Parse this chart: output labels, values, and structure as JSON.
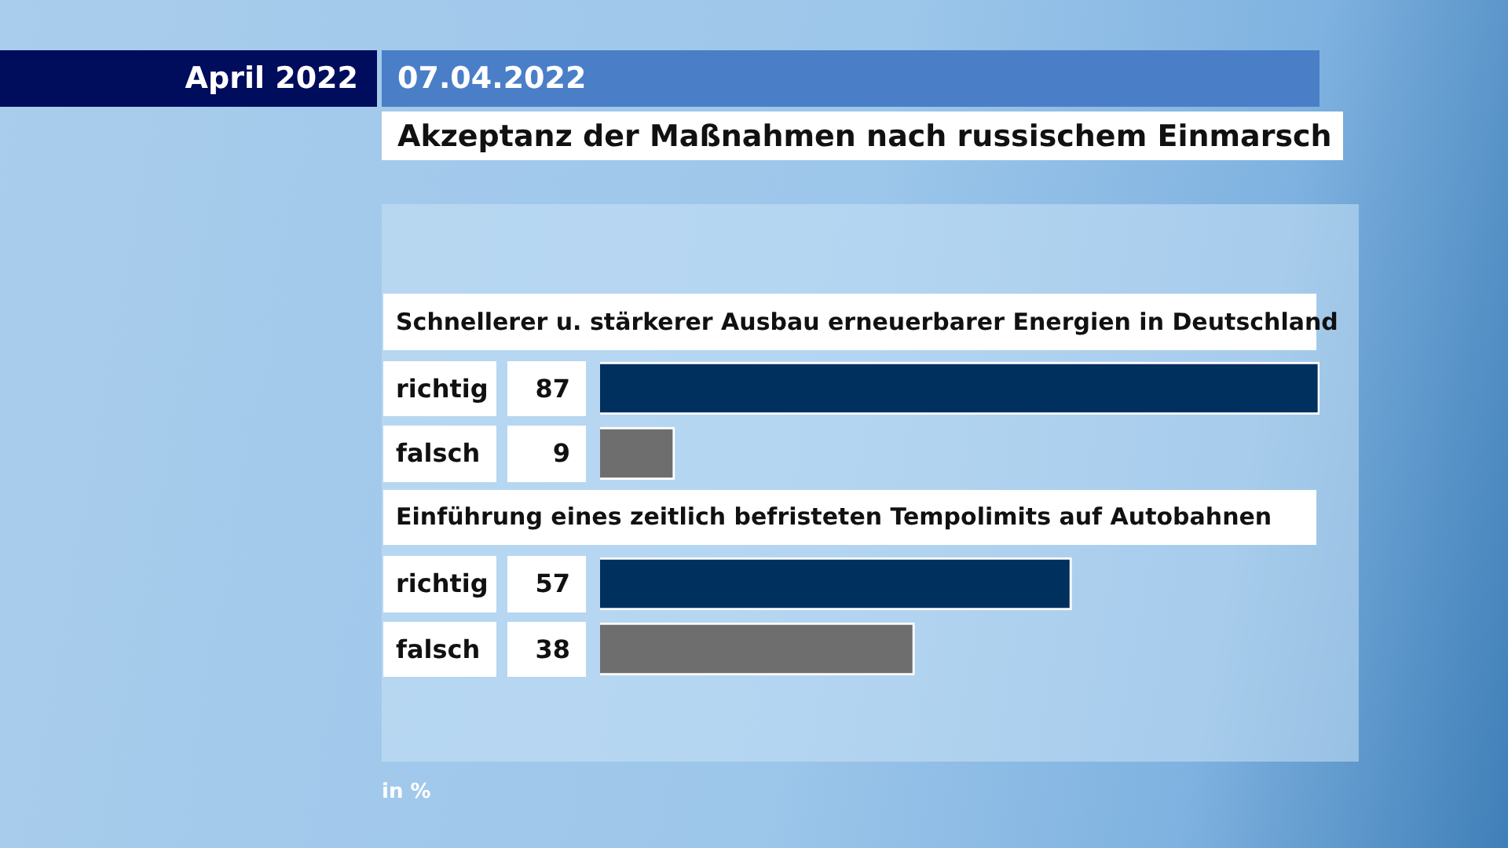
{
  "chart_data": {
    "type": "bar",
    "title": "Akzeptanz der Maßnahmen nach russischem Einmarsch",
    "subtitle": "07.04.2022",
    "annotations": [
      "April 2022",
      "in %",
      "Schnellerer u. stärkerer Ausbau erneuerbarer Energien in Deutschland",
      "Einführung eines zeitlich befristeten Tempolimits auf Autobahnen"
    ],
    "categories": [
      "richtig",
      "falsch",
      "richtig",
      "falsch"
    ],
    "values": [
      87,
      9,
      57,
      38
    ],
    "colors": [
      "#00305e",
      "#6e6e6e",
      "#00305e",
      "#6e6e6e"
    ],
    "orientation": "horizontal",
    "data_labels": true,
    "legend": false
  }
}
